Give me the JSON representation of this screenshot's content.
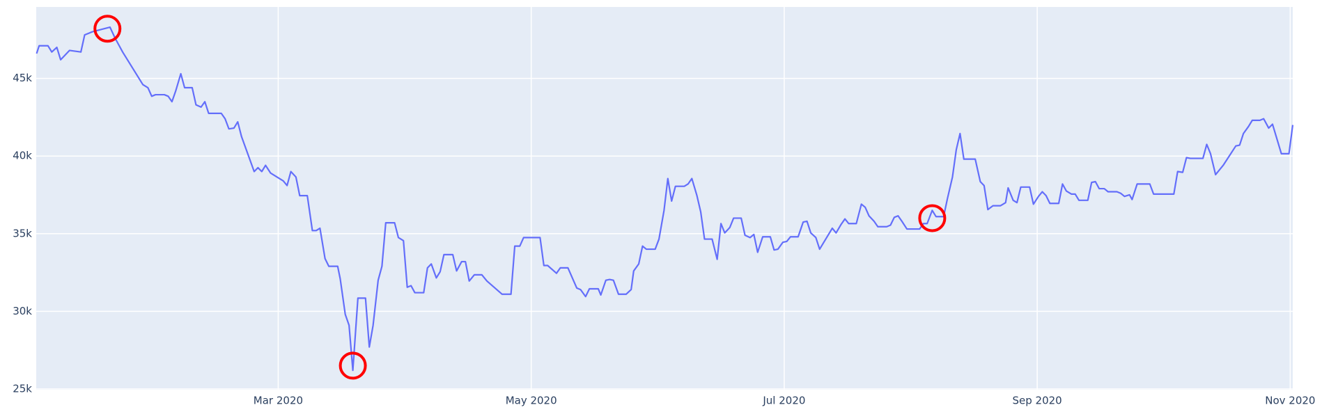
{
  "chart_data": {
    "type": "line",
    "x": [
      0.09,
      0.11,
      0.18,
      0.21,
      0.25,
      0.28,
      0.35,
      0.44,
      0.47,
      0.53,
      0.67,
      0.71,
      0.77,
      0.93,
      0.97,
      1.0,
      1.03,
      1.1,
      1.13,
      1.16,
      1.19,
      1.23,
      1.26,
      1.32,
      1.35,
      1.39,
      1.42,
      1.45,
      1.55,
      1.58,
      1.61,
      1.65,
      1.68,
      1.71,
      1.81,
      1.84,
      1.87,
      1.9,
      1.94,
      2.04,
      2.07,
      2.1,
      2.14,
      2.17,
      2.23,
      2.27,
      2.3,
      2.33,
      2.37,
      2.4,
      2.47,
      2.49,
      2.53,
      2.56,
      2.59,
      2.63,
      2.69,
      2.72,
      2.75,
      2.79,
      2.82,
      2.85,
      2.92,
      2.95,
      2.99,
      3.02,
      3.05,
      3.08,
      3.15,
      3.18,
      3.21,
      3.25,
      3.28,
      3.31,
      3.38,
      3.41,
      3.45,
      3.48,
      3.51,
      3.55,
      3.61,
      3.65,
      3.77,
      3.84,
      3.87,
      3.91,
      3.94,
      4.07,
      4.1,
      4.13,
      4.2,
      4.23,
      4.29,
      4.36,
      4.39,
      4.43,
      4.46,
      4.53,
      4.55,
      4.59,
      4.62,
      4.65,
      4.69,
      4.75,
      4.79,
      4.81,
      4.85,
      4.88,
      4.91,
      4.98,
      5.01,
      5.05,
      5.08,
      5.11,
      5.14,
      5.21,
      5.24,
      5.27,
      5.31,
      5.34,
      5.37,
      5.43,
      5.47,
      5.5,
      5.53,
      5.57,
      5.6,
      5.66,
      5.69,
      5.73,
      5.76,
      5.79,
      5.83,
      5.89,
      5.92,
      5.95,
      5.99,
      6.02,
      6.05,
      6.11,
      6.15,
      6.18,
      6.21,
      6.25,
      6.28,
      6.38,
      6.41,
      6.45,
      6.48,
      6.51,
      6.57,
      6.61,
      6.64,
      6.67,
      6.71,
      6.74,
      6.81,
      6.84,
      6.87,
      6.9,
      6.93,
      6.97,
      7.03,
      7.07,
      7.1,
      7.13,
      7.17,
      7.2,
      7.26,
      7.29,
      7.33,
      7.36,
      7.39,
      7.42,
      7.51,
      7.55,
      7.58,
      7.61,
      7.65,
      7.71,
      7.75,
      7.77,
      7.81,
      7.84,
      7.87,
      7.94,
      7.97,
      8.01,
      8.04,
      8.07,
      8.1,
      8.17,
      8.2,
      8.23,
      8.27,
      8.3,
      8.33,
      8.4,
      8.43,
      8.46,
      8.49,
      8.53,
      8.56,
      8.63,
      8.66,
      8.69,
      8.73,
      8.75,
      8.79,
      8.89,
      8.92,
      9.08,
      9.11,
      9.15,
      9.18,
      9.21,
      9.31,
      9.34,
      9.37,
      9.41,
      9.47,
      9.57,
      9.6,
      9.63,
      9.67,
      9.7,
      9.76,
      9.79,
      9.83,
      9.86,
      9.93,
      9.99,
      10.02
    ],
    "series": [
      {
        "color": "#636efa",
        "values": [
          46600,
          47100,
          47100,
          46700,
          47000,
          46200,
          46800,
          46700,
          47800,
          48000,
          48300,
          47600,
          46700,
          44600,
          44400,
          43850,
          43950,
          43950,
          43850,
          43500,
          44200,
          45300,
          44400,
          44400,
          43300,
          43150,
          43500,
          42750,
          42750,
          42400,
          41750,
          41800,
          42200,
          41250,
          39000,
          39250,
          39000,
          39400,
          38900,
          38400,
          38100,
          39000,
          38650,
          37450,
          37450,
          35200,
          35200,
          35350,
          33400,
          32900,
          32900,
          32100,
          29800,
          29100,
          26200,
          30850,
          30850,
          27700,
          29100,
          32000,
          32900,
          35700,
          35700,
          34750,
          34550,
          31550,
          31650,
          31200,
          31200,
          32800,
          33050,
          32150,
          32550,
          33650,
          33650,
          32600,
          33200,
          33200,
          31950,
          32350,
          32350,
          31950,
          31100,
          31100,
          34200,
          34200,
          34750,
          34750,
          32950,
          32950,
          32450,
          32800,
          32800,
          31500,
          31400,
          30950,
          31450,
          31450,
          31050,
          32000,
          32050,
          32000,
          31100,
          31100,
          31400,
          32600,
          33050,
          34200,
          34000,
          34000,
          34650,
          36500,
          38550,
          37100,
          38050,
          38050,
          38200,
          38550,
          37450,
          36400,
          34650,
          34650,
          33350,
          35650,
          35050,
          35400,
          36000,
          36000,
          34900,
          34750,
          34950,
          33800,
          34800,
          34800,
          33950,
          34000,
          34450,
          34500,
          34800,
          34800,
          35750,
          35800,
          35050,
          34750,
          34000,
          35350,
          35050,
          35600,
          35950,
          35650,
          35650,
          36900,
          36700,
          36150,
          35800,
          35450,
          35450,
          35550,
          36050,
          36150,
          35800,
          35300,
          35300,
          35300,
          35650,
          35650,
          36500,
          36100,
          36100,
          37250,
          38650,
          40400,
          41450,
          39800,
          39800,
          38350,
          38100,
          36550,
          36800,
          36800,
          37000,
          37950,
          37150,
          37000,
          38000,
          38000,
          36900,
          37400,
          37700,
          37450,
          36950,
          36950,
          38200,
          37750,
          37550,
          37550,
          37150,
          37150,
          38300,
          38350,
          37900,
          37900,
          37700,
          37700,
          37600,
          37400,
          37500,
          37200,
          38200,
          38200,
          37550,
          37550,
          39000,
          38950,
          39900,
          39850,
          39850,
          40750,
          40150,
          38800,
          39400,
          40650,
          40700,
          41450,
          41900,
          42300,
          42300,
          42400,
          41800,
          42050,
          40150,
          40150,
          42000
        ]
      },
      {
        "color": "#ff0000",
        "mode": "markers",
        "x": [
          0.65,
          2.59,
          7.17
        ],
        "values": [
          48200,
          26500,
          36000
        ]
      }
    ],
    "xlim": [
      0.087,
      10.02
    ],
    "xticks": [
      {
        "value": 2,
        "label": "Mar 2020"
      },
      {
        "value": 4,
        "label": "May 2020"
      },
      {
        "value": 6,
        "label": "Jul 2020"
      },
      {
        "value": 8,
        "label": "Sep 2020"
      },
      {
        "value": 10,
        "label": "Nov 2020"
      }
    ],
    "ylim": [
      24950,
      49600
    ],
    "yticks": [
      {
        "value": 25000,
        "label": "25k"
      },
      {
        "value": 30000,
        "label": "30k"
      },
      {
        "value": 35000,
        "label": "35k"
      },
      {
        "value": 40000,
        "label": "40k"
      },
      {
        "value": 45000,
        "label": "45k"
      }
    ],
    "grid": true,
    "background": "#e5ecf6"
  }
}
